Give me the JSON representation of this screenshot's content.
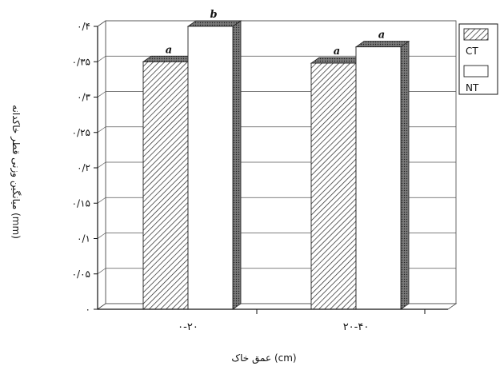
{
  "chart_data": {
    "type": "bar",
    "style": "3d-clustered",
    "categories": [
      "۰-۲۰",
      "۲۰-۴۰"
    ],
    "series": [
      {
        "name": "CT",
        "values": [
          0.35,
          0.348
        ],
        "letters": [
          "a",
          "a"
        ],
        "fill": "hatched"
      },
      {
        "name": "NT",
        "values": [
          0.4,
          0.371
        ],
        "letters": [
          "b",
          "a"
        ],
        "fill": "white"
      }
    ],
    "y_ticks": [
      {
        "value": 0,
        "label": "۰"
      },
      {
        "value": 0.05,
        "label": "۰/۰۵"
      },
      {
        "value": 0.1,
        "label": "۰/۱"
      },
      {
        "value": 0.15,
        "label": "۰/۱۵"
      },
      {
        "value": 0.2,
        "label": "۰/۲"
      },
      {
        "value": 0.25,
        "label": "۰/۲۵"
      },
      {
        "value": 0.3,
        "label": "۰/۳"
      },
      {
        "value": 0.35,
        "label": "۰/۳۵"
      },
      {
        "value": 0.4,
        "label": "۰/۴"
      }
    ],
    "ylim": [
      0,
      0.4
    ],
    "xlabel": "عمق خاک (cm)",
    "ylabel": "میانگین وزنی قطر خاکدانه (mm)",
    "legend_position": "right",
    "grid": true,
    "colors": {
      "ink": "#111111",
      "grid": "#444444",
      "bar_face": "#ffffff",
      "bar_side": "#5a5a5a"
    }
  }
}
